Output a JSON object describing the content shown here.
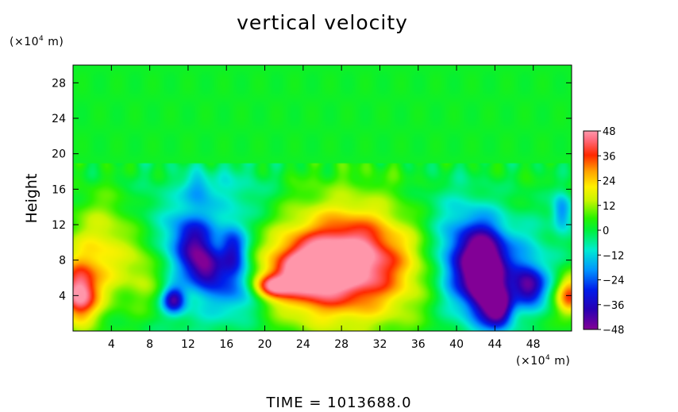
{
  "chart_data": {
    "type": "heatmap",
    "title": "vertical velocity",
    "ylabel": "Height",
    "y_unit": {
      "prefix": "(×10",
      "exp": "4",
      "suffix": " m)"
    },
    "x_unit": {
      "prefix": "(×10",
      "exp": "4",
      "suffix": " m)"
    },
    "x_ticks": [
      "4",
      "8",
      "12",
      "16",
      "20",
      "24",
      "28",
      "32",
      "36",
      "40",
      "44",
      "48"
    ],
    "x_tick_values": [
      4,
      8,
      12,
      16,
      20,
      24,
      28,
      32,
      36,
      40,
      44,
      48
    ],
    "y_ticks": [
      "4",
      "8",
      "12",
      "16",
      "20",
      "24",
      "28"
    ],
    "y_tick_values": [
      4,
      8,
      12,
      16,
      20,
      24,
      28
    ],
    "xlim": [
      0,
      52
    ],
    "ylim": [
      0,
      30
    ],
    "colorbar": {
      "ticks": [
        "48",
        "36",
        "24",
        "12",
        "0",
        "−12",
        "−24",
        "−36",
        "−48"
      ],
      "tick_values": [
        48,
        36,
        24,
        12,
        0,
        -12,
        -24,
        -36,
        -48
      ],
      "range": [
        -48,
        48
      ]
    },
    "features": [
      {
        "x": 27.5,
        "y": 7.0,
        "value": 36,
        "sx": 5.0,
        "sy": 3.6
      },
      {
        "x": 28.5,
        "y": 8.0,
        "value": 14,
        "sx": 8.5,
        "sy": 6.5
      },
      {
        "x": 24.0,
        "y": 6.6,
        "value": 26,
        "sx": 2.3,
        "sy": 2.0
      },
      {
        "x": 20.5,
        "y": 5.0,
        "value": 34,
        "sx": 1.3,
        "sy": 1.0
      },
      {
        "x": 29.5,
        "y": 9.5,
        "value": 12,
        "sx": 3.0,
        "sy": 3.0
      },
      {
        "x": 0.6,
        "y": 4.0,
        "value": 40,
        "sx": 1.3,
        "sy": 2.2
      },
      {
        "x": 2.0,
        "y": 6.5,
        "value": 16,
        "sx": 2.6,
        "sy": 3.2
      },
      {
        "x": 3.5,
        "y": 11.0,
        "value": 12,
        "sx": 2.5,
        "sy": 3.5
      },
      {
        "x": 7.5,
        "y": 6.5,
        "value": 14,
        "sx": 1.5,
        "sy": 3.0
      },
      {
        "x": 51.8,
        "y": 4.0,
        "value": 34,
        "sx": 1.0,
        "sy": 1.6
      },
      {
        "x": 12.5,
        "y": 10.0,
        "value": -32,
        "sx": 1.5,
        "sy": 2.3
      },
      {
        "x": 14.0,
        "y": 7.0,
        "value": -30,
        "sx": 1.2,
        "sy": 1.6
      },
      {
        "x": 16.7,
        "y": 9.0,
        "value": -30,
        "sx": 1.0,
        "sy": 2.0
      },
      {
        "x": 10.5,
        "y": 3.5,
        "value": -36,
        "sx": 0.8,
        "sy": 1.0
      },
      {
        "x": 15.0,
        "y": 6.0,
        "value": -14,
        "sx": 4.5,
        "sy": 5.0
      },
      {
        "x": 17.5,
        "y": 4.5,
        "value": -16,
        "sx": 2.0,
        "sy": 1.8
      },
      {
        "x": 43.0,
        "y": 6.0,
        "value": -46,
        "sx": 1.3,
        "sy": 3.2
      },
      {
        "x": 42.0,
        "y": 8.0,
        "value": -32,
        "sx": 2.4,
        "sy": 3.2
      },
      {
        "x": 44.5,
        "y": 2.5,
        "value": -40,
        "sx": 1.0,
        "sy": 1.6
      },
      {
        "x": 40.5,
        "y": 7.0,
        "value": -16,
        "sx": 2.5,
        "sy": 5.0
      },
      {
        "x": 47.5,
        "y": 5.0,
        "value": -36,
        "sx": 1.2,
        "sy": 1.5
      },
      {
        "x": 47.0,
        "y": 7.5,
        "value": -14,
        "sx": 2.5,
        "sy": 3.5
      },
      {
        "x": 51.0,
        "y": 13.5,
        "value": -22,
        "sx": 0.7,
        "sy": 1.5
      },
      {
        "x": 8.5,
        "y": 12.0,
        "value": -6,
        "sx": 2.5,
        "sy": 4.0
      },
      {
        "x": 17.0,
        "y": 15.5,
        "value": -10,
        "sx": 3.5,
        "sy": 3.0
      },
      {
        "x": 38.0,
        "y": 14.0,
        "value": -6,
        "sx": 3.0,
        "sy": 3.0
      },
      {
        "x": 13.0,
        "y": 16.0,
        "value": -14,
        "sx": 1.0,
        "sy": 1.2
      }
    ],
    "background_value": 1,
    "upper_layer_value": 2
  },
  "time_text": "TIME  =  1013688.0"
}
